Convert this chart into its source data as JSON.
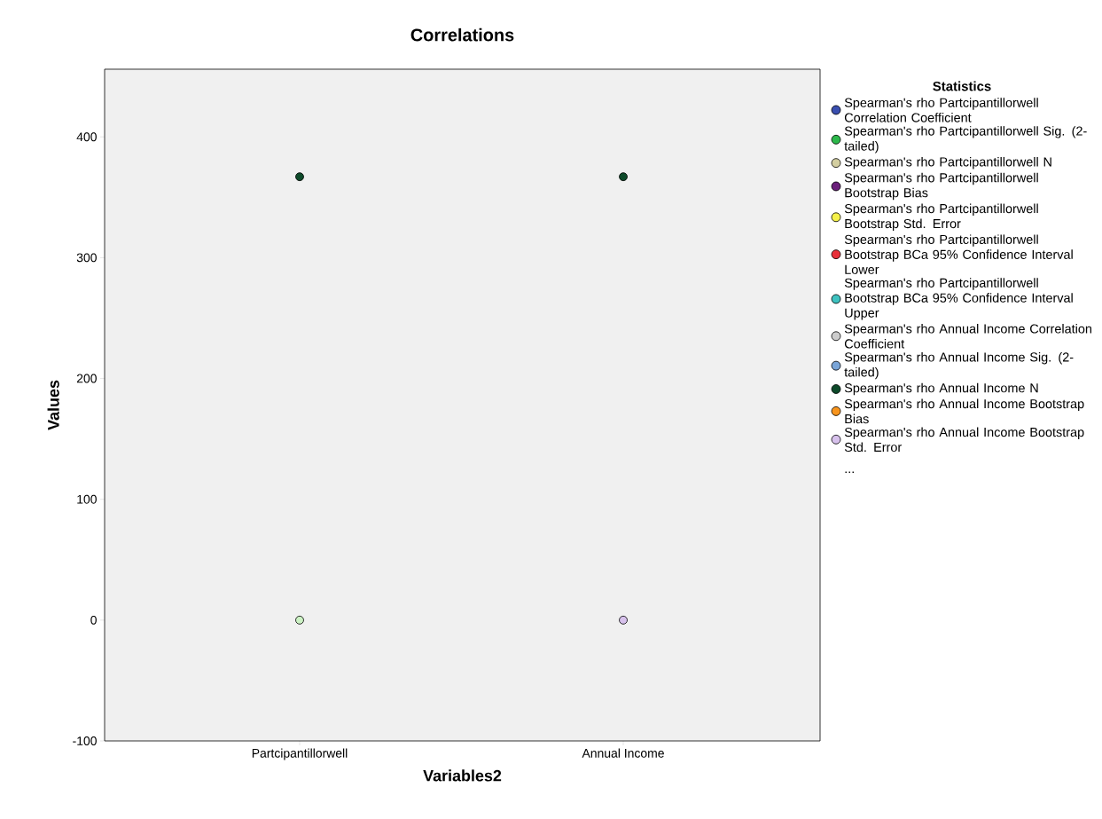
{
  "chart_data": {
    "type": "scatter",
    "title": "Correlations",
    "xlabel": "Variables2",
    "ylabel": "Values",
    "legend_title": "Statistics",
    "categories": [
      "Partcipantillorwell",
      "Annual Income"
    ],
    "ylim": [
      -100,
      456
    ],
    "yticks": [
      -100,
      0,
      100,
      200,
      300,
      400
    ],
    "marker": "circle",
    "legend": "right",
    "grid": false,
    "annotations": [
      "..."
    ],
    "series": [
      {
        "name": "Spearman's rho Partcipantillorwell Correlation Coefficient",
        "color": "#3a4fb0",
        "values": [
          null,
          null
        ]
      },
      {
        "name": "Spearman's rho Partcipantillorwell Sig. (2-tailed)",
        "color": "#2db84b",
        "values": [
          null,
          null
        ]
      },
      {
        "name": "Spearman's rho Partcipantillorwell N",
        "color": "#d3cea0",
        "values": [
          null,
          null
        ]
      },
      {
        "name": "Spearman's rho Partcipantillorwell Bootstrap Bias",
        "color": "#6a1f7a",
        "values": [
          null,
          null
        ]
      },
      {
        "name": "Spearman's rho Partcipantillorwell Bootstrap Std. Error",
        "color": "#f5f14a",
        "values": [
          null,
          null
        ]
      },
      {
        "name": "Spearman's rho Partcipantillorwell Bootstrap BCa 95% Confidence Interval Lower",
        "color": "#e8303a",
        "values": [
          null,
          null
        ]
      },
      {
        "name": "Spearman's rho Partcipantillorwell Bootstrap BCa 95% Confidence Interval Upper",
        "color": "#3ec2c0",
        "values": [
          null,
          null
        ]
      },
      {
        "name": "Spearman's rho Annual Income Correlation Coefficient",
        "color": "#cccccc",
        "values": [
          null,
          null
        ]
      },
      {
        "name": "Spearman's rho Annual Income Sig. (2-tailed)",
        "color": "#7aa5d8",
        "values": [
          null,
          null
        ]
      },
      {
        "name": "Spearman's rho Annual Income N",
        "color": "#0e4a2a",
        "values": [
          367,
          367
        ]
      },
      {
        "name": "Spearman's rho Annual Income Bootstrap Bias",
        "color": "#f7941d",
        "values": [
          null,
          null
        ]
      },
      {
        "name": "Spearman's rho Annual Income Bootstrap Std. Error",
        "color": "#d7c1ec",
        "values": [
          null,
          0
        ]
      },
      {
        "color": "#ccf2c4",
        "values": [
          0,
          null
        ]
      }
    ]
  }
}
